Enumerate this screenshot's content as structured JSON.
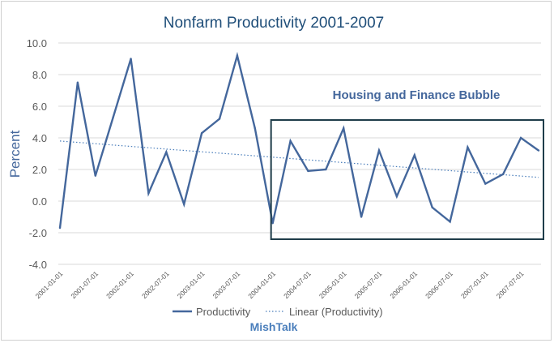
{
  "chart_data": {
    "type": "line",
    "title": "Nonfarm Productivity 2001-2007",
    "xlabel": "",
    "ylabel": "Percent",
    "ylim": [
      -4.0,
      10.0
    ],
    "yticks": [
      "10.0",
      "8.0",
      "6.0",
      "4.0",
      "2.0",
      "0.0",
      "-2.0",
      "-4.0"
    ],
    "grid": true,
    "x": [
      "2001-01-01",
      "2001-04-01",
      "2001-07-01",
      "2001-10-01",
      "2002-01-01",
      "2002-04-01",
      "2002-07-01",
      "2002-10-01",
      "2003-01-01",
      "2003-04-01",
      "2003-07-01",
      "2003-10-01",
      "2004-01-01",
      "2004-04-01",
      "2004-07-01",
      "2004-10-01",
      "2005-01-01",
      "2005-04-01",
      "2005-07-01",
      "2005-10-01",
      "2006-01-01",
      "2006-04-01",
      "2006-07-01",
      "2006-10-01",
      "2007-01-01",
      "2007-04-01",
      "2007-07-01",
      "2007-10-01"
    ],
    "xtick_labels": [
      "2001-01-01",
      "2001-07-01",
      "2002-01-01",
      "2002-07-01",
      "2003-01-01",
      "2003-07-01",
      "2004-01-01",
      "2004-07-01",
      "2005-01-01",
      "2005-07-01",
      "2006-01-01",
      "2006-07-01",
      "2007-01-01",
      "2007-07-01"
    ],
    "series": [
      {
        "name": "Productivity",
        "values": [
          -1.7,
          7.5,
          1.6,
          5.3,
          9.0,
          0.5,
          3.1,
          -0.2,
          4.3,
          5.2,
          9.2,
          4.6,
          -1.4,
          3.8,
          1.9,
          2.0,
          4.6,
          -1.0,
          3.2,
          0.3,
          2.9,
          -0.4,
          -1.3,
          3.4,
          1.1,
          1.7,
          4.0,
          3.2
        ]
      }
    ],
    "trendline": {
      "name": "Linear (Productivity)",
      "start": 3.8,
      "end": 1.5
    },
    "legend": [
      "Productivity",
      "Linear (Productivity)"
    ],
    "legend_position": "bottom",
    "annotation": "Housing and Finance Bubble",
    "annotation_range": [
      "2004-01-01",
      "2007-10-01"
    ],
    "footer": "MishTalk",
    "colors": {
      "series": "#44679c",
      "axis_text": "#595959",
      "grid": "#d9d9d9",
      "box": "#1f3d4a",
      "title": "#1f4e79"
    }
  }
}
